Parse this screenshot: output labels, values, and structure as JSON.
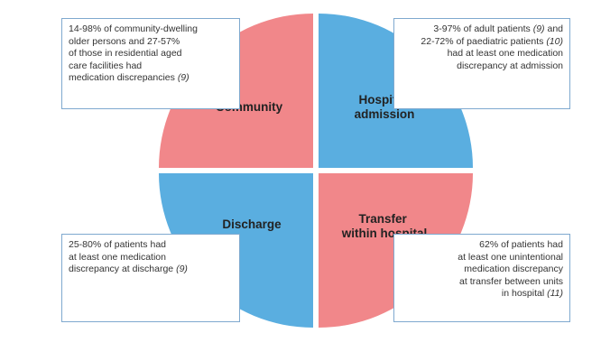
{
  "quadrants": {
    "community": {
      "label": "Community",
      "color": "#f1878a"
    },
    "hospital_admission": {
      "label_line1": "Hospital",
      "label_line2": "admission",
      "color": "#5aaee0"
    },
    "discharge": {
      "label": "Discharge",
      "color": "#5aaee0"
    },
    "transfer": {
      "label_line1": "Transfer",
      "label_line2": "within hospital",
      "color": "#f1878a"
    }
  },
  "notes": {
    "community": {
      "l1": "14-98% of community-dwelling",
      "l2": "older persons and 27-57%",
      "l3": "of those in residential aged",
      "l4": "care facilities had",
      "l5": "medication discrepancies ",
      "ref": "(9)"
    },
    "admission": {
      "l1a": "3-97% of adult patients ",
      "l1ref": "(9)",
      "l1b": " and",
      "l2a": "22-72% of paediatric patients ",
      "l2ref": "(10)",
      "l3": "had at least one medication",
      "l4": "discrepancy at admission"
    },
    "discharge": {
      "l1": "25-80% of patients had",
      "l2": "at least one medication",
      "l3": "discrepancy at discharge ",
      "ref": "(9)"
    },
    "transfer": {
      "l1": "62% of patients had",
      "l2": "at least one unintentional",
      "l3": "medication discrepancy",
      "l4": "at transfer between units",
      "l5": "in hospital ",
      "ref": "(11)"
    }
  },
  "colors": {
    "border": "#7fa9cf",
    "pink": "#f1878a",
    "blue": "#5aaee0"
  }
}
